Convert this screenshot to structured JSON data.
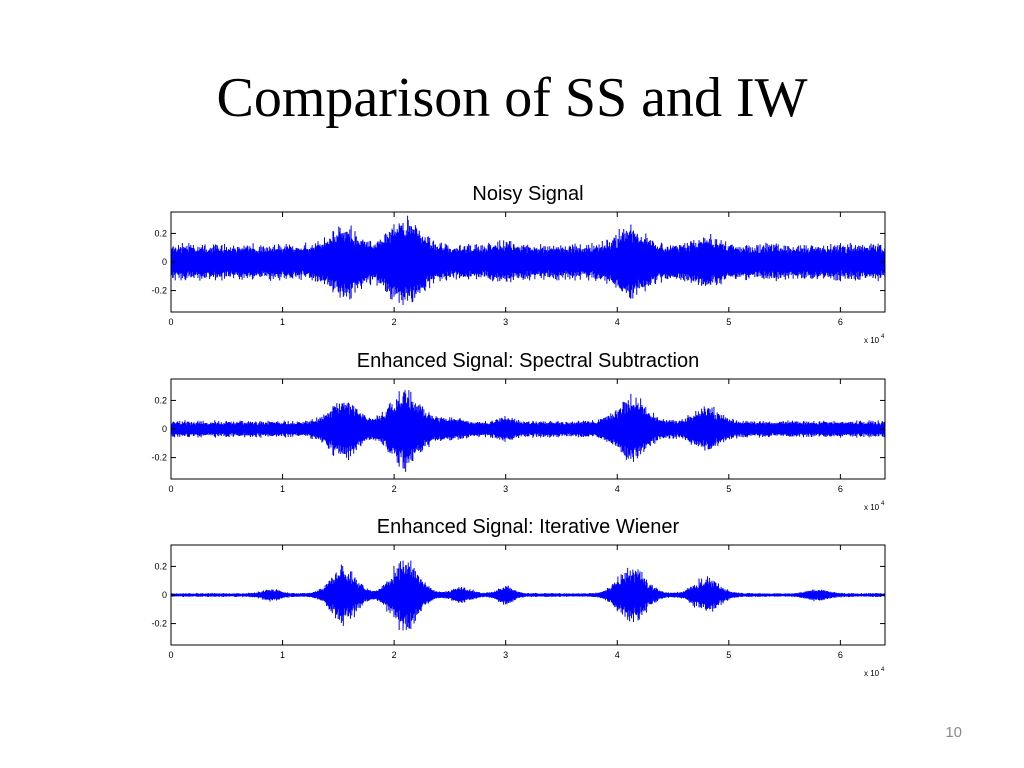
{
  "slide": {
    "title": "Comparison of SS and IW",
    "page_number": "10"
  },
  "colors": {
    "signal": "#0000ff",
    "axes": "#000000",
    "title_text": "#000000"
  },
  "chart_data": [
    {
      "type": "line",
      "title": "Noisy Signal",
      "xlabel": "",
      "ylabel": "",
      "xlim": [
        0,
        64000
      ],
      "ylim": [
        -0.35,
        0.35
      ],
      "x_ticks": [
        0,
        1,
        2,
        3,
        4,
        5,
        6
      ],
      "x_tick_labels": [
        "0",
        "1",
        "2",
        "3",
        "4",
        "5",
        "6"
      ],
      "y_ticks": [
        0.2,
        0,
        -0.2
      ],
      "y_tick_labels": [
        "0.2",
        "0",
        "-0.2"
      ],
      "x_multiplier": "x 10",
      "x_multiplier_exp": "4",
      "noise_level": 0.11,
      "speech_bursts": [
        {
          "center": 15500,
          "width": 2400,
          "amplitude": 0.14
        },
        {
          "center": 21000,
          "width": 2600,
          "amplitude": 0.2
        },
        {
          "center": 41300,
          "width": 2600,
          "amplitude": 0.13
        },
        {
          "center": 48000,
          "width": 2400,
          "amplitude": 0.06
        },
        {
          "center": 30000,
          "width": 1500,
          "amplitude": 0.03
        }
      ]
    },
    {
      "type": "line",
      "title": "Enhanced Signal: Spectral Subtraction",
      "xlabel": "",
      "ylabel": "",
      "xlim": [
        0,
        64000
      ],
      "ylim": [
        -0.35,
        0.35
      ],
      "x_ticks": [
        0,
        1,
        2,
        3,
        4,
        5,
        6
      ],
      "x_tick_labels": [
        "0",
        "1",
        "2",
        "3",
        "4",
        "5",
        "6"
      ],
      "y_ticks": [
        0.2,
        0,
        -0.2
      ],
      "y_tick_labels": [
        "0.2",
        "0",
        "-0.2"
      ],
      "x_multiplier": "x 10",
      "x_multiplier_exp": "4",
      "noise_level": 0.05,
      "speech_bursts": [
        {
          "center": 15500,
          "width": 2400,
          "amplitude": 0.16
        },
        {
          "center": 21000,
          "width": 2600,
          "amplitude": 0.22
        },
        {
          "center": 41300,
          "width": 2600,
          "amplitude": 0.16
        },
        {
          "center": 48000,
          "width": 2400,
          "amplitude": 0.1
        },
        {
          "center": 30000,
          "width": 1500,
          "amplitude": 0.03
        },
        {
          "center": 25000,
          "width": 2000,
          "amplitude": 0.03
        }
      ]
    },
    {
      "type": "line",
      "title": "Enhanced Signal: Iterative Wiener",
      "xlabel": "",
      "ylabel": "",
      "xlim": [
        0,
        64000
      ],
      "ylim": [
        -0.35,
        0.35
      ],
      "x_ticks": [
        0,
        1,
        2,
        3,
        4,
        5,
        6
      ],
      "x_tick_labels": [
        "0",
        "1",
        "2",
        "3",
        "4",
        "5",
        "6"
      ],
      "y_ticks": [
        0.2,
        0,
        -0.2
      ],
      "y_tick_labels": [
        "0.2",
        "0",
        "-0.2"
      ],
      "x_multiplier": "x 10",
      "x_multiplier_exp": "4",
      "noise_level": 0.012,
      "speech_bursts": [
        {
          "center": 15500,
          "width": 2200,
          "amplitude": 0.18
        },
        {
          "center": 21000,
          "width": 2400,
          "amplitude": 0.23
        },
        {
          "center": 41300,
          "width": 2400,
          "amplitude": 0.18
        },
        {
          "center": 48000,
          "width": 2200,
          "amplitude": 0.11
        },
        {
          "center": 30000,
          "width": 1400,
          "amplitude": 0.05
        },
        {
          "center": 26000,
          "width": 1800,
          "amplitude": 0.04
        },
        {
          "center": 9000,
          "width": 1600,
          "amplitude": 0.03
        },
        {
          "center": 58000,
          "width": 1800,
          "amplitude": 0.03
        }
      ]
    }
  ]
}
